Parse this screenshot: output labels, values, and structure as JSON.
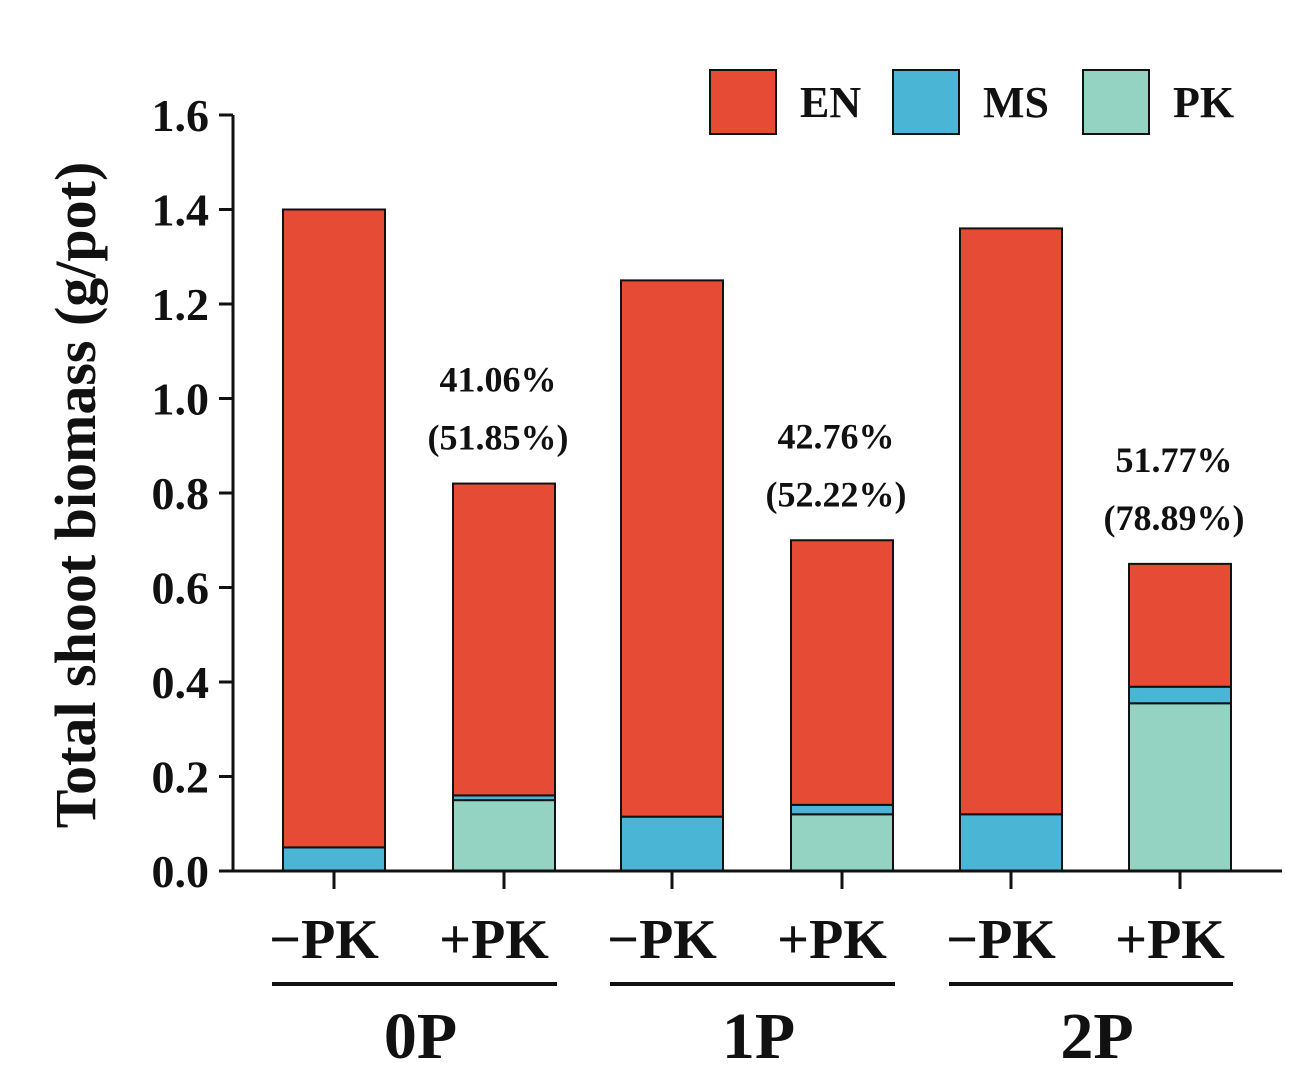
{
  "chart_data": {
    "type": "bar",
    "stacked": true,
    "title": "",
    "ylabel": "Total shoot biomass (g/pot)",
    "xlabel": "",
    "ylim": [
      0,
      1.6
    ],
    "yticks": [
      "0.0",
      "0.2",
      "0.4",
      "0.6",
      "0.8",
      "1.0",
      "1.2",
      "1.4",
      "1.6"
    ],
    "categories": [
      "−PK",
      "+PK",
      "−PK",
      "+PK",
      "−PK",
      "+PK"
    ],
    "groups": [
      {
        "label": "0P",
        "category_indices": [
          0,
          1
        ]
      },
      {
        "label": "1P",
        "category_indices": [
          2,
          3
        ]
      },
      {
        "label": "2P",
        "category_indices": [
          4,
          5
        ]
      }
    ],
    "series": [
      {
        "name": "PK",
        "color": "#94d3c1",
        "values": [
          0.0,
          0.15,
          0.0,
          0.12,
          0.0,
          0.355
        ]
      },
      {
        "name": "MS",
        "color": "#4ab5d4",
        "values": [
          0.05,
          0.01,
          0.115,
          0.02,
          0.12,
          0.035
        ]
      },
      {
        "name": "EN",
        "color": "#e64b35",
        "values": [
          1.35,
          0.66,
          1.135,
          0.56,
          1.24,
          0.26
        ]
      }
    ],
    "legend": {
      "position": "top-right",
      "order": [
        "EN",
        "MS",
        "PK"
      ]
    },
    "annotations": [
      {
        "category_index": 1,
        "line1": "41.06%",
        "line2": "(51.85%)"
      },
      {
        "category_index": 3,
        "line1": "42.76%",
        "line2": "(52.22%)"
      },
      {
        "category_index": 5,
        "line1": "51.77%",
        "line2": "(78.89%)"
      }
    ]
  }
}
